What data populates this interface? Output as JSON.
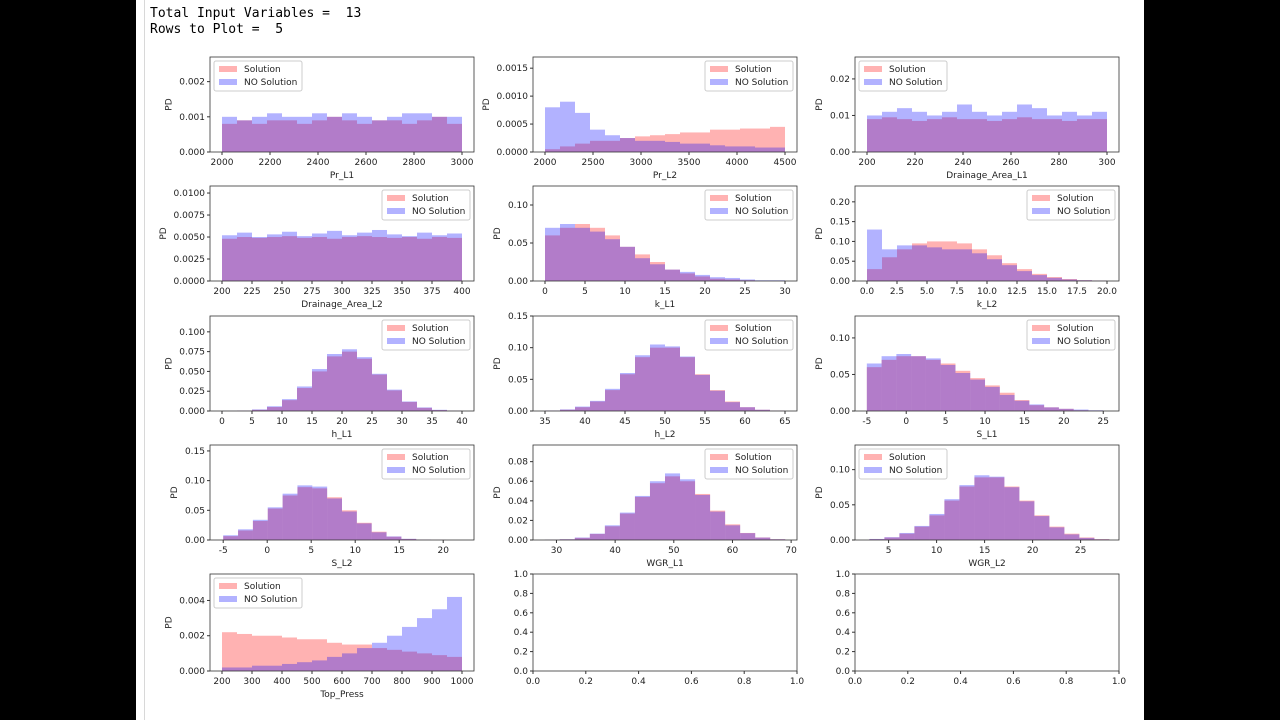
{
  "output": {
    "line1": "Total Input Variables =  13",
    "line2": "Rows to Plot =  5"
  },
  "colors": {
    "solution": "#ff0000",
    "no_solution": "#0000ff",
    "alpha": 0.3
  },
  "chart_data": [
    {
      "type": "bar",
      "xlabel": "Pr_L1",
      "ylabel": "PD",
      "legend": "upper-left",
      "range": [
        2000,
        3000
      ],
      "xlim": [
        1950,
        3050
      ],
      "ylim": [
        0,
        0.0027
      ],
      "xtick_labels": [
        "2000",
        "2200",
        "2400",
        "2600",
        "2800",
        "3000"
      ],
      "ytick_labels": [
        "0.000",
        "0.001",
        "0.002"
      ],
      "series": [
        {
          "name": "Solution",
          "values": [
            0.0008,
            0.0009,
            0.0008,
            0.0009,
            0.0009,
            0.0008,
            0.0009,
            0.001,
            0.0009,
            0.0008,
            0.0009,
            0.0009,
            0.0008,
            0.0009,
            0.001,
            0.0008
          ]
        },
        {
          "name": "NO Solution",
          "values": [
            0.001,
            0.0009,
            0.001,
            0.0011,
            0.001,
            0.001,
            0.0011,
            0.001,
            0.0011,
            0.001,
            0.0009,
            0.001,
            0.0011,
            0.0011,
            0.001,
            0.001
          ]
        }
      ]
    },
    {
      "type": "bar",
      "xlabel": "Pr_L2",
      "ylabel": "PD",
      "legend": "upper-right",
      "range": [
        2000,
        4500
      ],
      "xlim": [
        1875,
        4625
      ],
      "ylim": [
        0,
        0.0017
      ],
      "xtick_labels": [
        "2000",
        "2500",
        "3000",
        "3500",
        "4000",
        "4500"
      ],
      "ytick_labels": [
        "0.0000",
        "0.0005",
        "0.0010",
        "0.0015"
      ],
      "series": [
        {
          "name": "Solution",
          "values": [
            5e-05,
            0.0001,
            0.00015,
            0.0002,
            0.0002,
            0.00025,
            0.00028,
            0.0003,
            0.00032,
            0.00035,
            0.00035,
            0.0004,
            0.0004,
            0.00042,
            0.00042,
            0.00045
          ]
        },
        {
          "name": "NO Solution",
          "values": [
            0.0008,
            0.0009,
            0.0007,
            0.0004,
            0.0003,
            0.00025,
            0.0002,
            0.0002,
            0.00018,
            0.00015,
            0.00015,
            0.00012,
            0.0001,
            0.0001,
            8e-05,
            8e-05
          ]
        }
      ]
    },
    {
      "type": "bar",
      "xlabel": "Drainage_Area_L1",
      "ylabel": "PD",
      "legend": "upper-left",
      "range": [
        200,
        300
      ],
      "xlim": [
        195,
        305
      ],
      "ylim": [
        0,
        0.026
      ],
      "xtick_labels": [
        "200",
        "220",
        "240",
        "260",
        "280",
        "300"
      ],
      "ytick_labels": [
        "0.00",
        "0.01",
        "0.02"
      ],
      "series": [
        {
          "name": "Solution",
          "values": [
            0.009,
            0.0095,
            0.009,
            0.0085,
            0.009,
            0.0095,
            0.009,
            0.009,
            0.0085,
            0.009,
            0.0095,
            0.009,
            0.009,
            0.0085,
            0.009,
            0.009
          ]
        },
        {
          "name": "NO Solution",
          "values": [
            0.01,
            0.011,
            0.012,
            0.011,
            0.01,
            0.011,
            0.013,
            0.011,
            0.01,
            0.011,
            0.013,
            0.012,
            0.01,
            0.011,
            0.01,
            0.011
          ]
        }
      ]
    },
    {
      "type": "bar",
      "xlabel": "Drainage_Area_L2",
      "ylabel": "PD",
      "legend": "upper-right",
      "range": [
        200,
        400
      ],
      "xlim": [
        190,
        410
      ],
      "ylim": [
        0,
        0.0108
      ],
      "xtick_labels": [
        "200",
        "225",
        "250",
        "275",
        "300",
        "325",
        "350",
        "375",
        "400"
      ],
      "ytick_labels": [
        "0.0000",
        "0.0025",
        "0.0050",
        "0.0075",
        "0.0100"
      ],
      "series": [
        {
          "name": "Solution",
          "values": [
            0.0048,
            0.005,
            0.0049,
            0.005,
            0.0051,
            0.0049,
            0.005,
            0.0048,
            0.005,
            0.0051,
            0.005,
            0.0049,
            0.005,
            0.0048,
            0.005,
            0.0049
          ]
        },
        {
          "name": "NO Solution",
          "values": [
            0.0052,
            0.0055,
            0.005,
            0.0053,
            0.0056,
            0.0051,
            0.0054,
            0.0057,
            0.0052,
            0.0055,
            0.0058,
            0.0053,
            0.0051,
            0.0055,
            0.0052,
            0.0054
          ]
        }
      ]
    },
    {
      "type": "bar",
      "xlabel": "k_L1",
      "ylabel": "PD",
      "legend": "upper-right",
      "range": [
        0,
        30
      ],
      "xlim": [
        -1.5,
        31.5
      ],
      "ylim": [
        0,
        0.125
      ],
      "xtick_labels": [
        "0",
        "5",
        "10",
        "15",
        "20",
        "25",
        "30"
      ],
      "ytick_labels": [
        "0.00",
        "0.05",
        "0.10"
      ],
      "series": [
        {
          "name": "Solution",
          "values": [
            0.06,
            0.07,
            0.075,
            0.07,
            0.06,
            0.045,
            0.035,
            0.025,
            0.015,
            0.01,
            0.006,
            0.003,
            0.002,
            0.001,
            0,
            0
          ]
        },
        {
          "name": "NO Solution",
          "values": [
            0.07,
            0.075,
            0.07,
            0.065,
            0.055,
            0.045,
            0.03,
            0.022,
            0.015,
            0.012,
            0.008,
            0.005,
            0.004,
            0.002,
            0.001,
            0.001
          ]
        }
      ]
    },
    {
      "type": "bar",
      "xlabel": "k_L2",
      "ylabel": "PD",
      "legend": "upper-right",
      "range": [
        0,
        20
      ],
      "xlim": [
        -1,
        21
      ],
      "ylim": [
        0,
        0.24
      ],
      "xtick_labels": [
        "0.0",
        "2.5",
        "5.0",
        "7.5",
        "10.0",
        "12.5",
        "15.0",
        "17.5",
        "20.0"
      ],
      "ytick_labels": [
        "0.00",
        "0.05",
        "0.10",
        "0.15",
        "0.20"
      ],
      "series": [
        {
          "name": "Solution",
          "values": [
            0.03,
            0.06,
            0.08,
            0.095,
            0.1,
            0.1,
            0.095,
            0.08,
            0.065,
            0.045,
            0.03,
            0.018,
            0.01,
            0.005,
            0.002,
            0.001
          ]
        },
        {
          "name": "NO Solution",
          "values": [
            0.13,
            0.08,
            0.09,
            0.09,
            0.085,
            0.08,
            0.08,
            0.07,
            0.055,
            0.04,
            0.025,
            0.015,
            0.008,
            0.004,
            0.002,
            0.001
          ]
        }
      ]
    },
    {
      "type": "bar",
      "xlabel": "h_L1",
      "ylabel": "PD",
      "legend": "upper-right",
      "range": [
        0,
        40
      ],
      "xlim": [
        -2,
        42
      ],
      "ylim": [
        0,
        0.12
      ],
      "xtick_labels": [
        "0",
        "5",
        "10",
        "15",
        "20",
        "25",
        "30",
        "35",
        "40"
      ],
      "ytick_labels": [
        "0.000",
        "0.025",
        "0.050",
        "0.075",
        "0.100"
      ],
      "series": [
        {
          "name": "Solution",
          "values": [
            0.0001,
            0.0004,
            0.0015,
            0.005,
            0.0137,
            0.029,
            0.05,
            0.069,
            0.075,
            0.066,
            0.046,
            0.026,
            0.0115,
            0.004,
            0.0012,
            0.0003
          ]
        },
        {
          "name": "NO Solution",
          "values": [
            0.0002,
            0.0005,
            0.002,
            0.006,
            0.015,
            0.031,
            0.053,
            0.072,
            0.078,
            0.068,
            0.047,
            0.027,
            0.012,
            0.0045,
            0.0015,
            0.0004
          ]
        }
      ]
    },
    {
      "type": "bar",
      "xlabel": "h_L2",
      "ylabel": "PD",
      "legend": "upper-right",
      "range": [
        35,
        65
      ],
      "xlim": [
        33.5,
        66.5
      ],
      "ylim": [
        0,
        0.15
      ],
      "xtick_labels": [
        "35",
        "40",
        "45",
        "50",
        "55",
        "60",
        "65"
      ],
      "ytick_labels": [
        "0.00",
        "0.05",
        "0.10",
        "0.15"
      ],
      "series": [
        {
          "name": "Solution",
          "values": [
            0.0005,
            0.002,
            0.006,
            0.015,
            0.033,
            0.058,
            0.085,
            0.1,
            0.1,
            0.085,
            0.058,
            0.033,
            0.015,
            0.006,
            0.002,
            0.0005
          ]
        },
        {
          "name": "NO Solution",
          "values": [
            0.0007,
            0.0025,
            0.007,
            0.016,
            0.035,
            0.06,
            0.088,
            0.105,
            0.102,
            0.086,
            0.057,
            0.032,
            0.014,
            0.006,
            0.002,
            0.0005
          ]
        }
      ]
    },
    {
      "type": "bar",
      "xlabel": "S_L1",
      "ylabel": "PD",
      "legend": "upper-right",
      "range": [
        -5,
        25
      ],
      "xlim": [
        -6.5,
        27
      ],
      "ylim": [
        0,
        0.13
      ],
      "xtick_labels": [
        "-5",
        "0",
        "5",
        "10",
        "15",
        "20",
        "25"
      ],
      "ytick_labels": [
        "0.00",
        "0.05",
        "0.10"
      ],
      "series": [
        {
          "name": "Solution",
          "values": [
            0.06,
            0.07,
            0.075,
            0.075,
            0.07,
            0.065,
            0.055,
            0.045,
            0.035,
            0.025,
            0.015,
            0.008,
            0.005,
            0.003,
            0.001,
            0.0005
          ]
        },
        {
          "name": "NO Solution",
          "values": [
            0.065,
            0.075,
            0.078,
            0.075,
            0.072,
            0.063,
            0.052,
            0.043,
            0.033,
            0.022,
            0.014,
            0.009,
            0.005,
            0.003,
            0.002,
            0.001
          ]
        }
      ]
    },
    {
      "type": "bar",
      "xlabel": "S_L2",
      "ylabel": "PD",
      "legend": "upper-right",
      "range": [
        -5,
        22
      ],
      "xlim": [
        -6.5,
        23.5
      ],
      "ylim": [
        0,
        0.16
      ],
      "xtick_labels": [
        "-5",
        "0",
        "5",
        "10",
        "15",
        "20"
      ],
      "ytick_labels": [
        "0.00",
        "0.05",
        "0.10",
        "0.15"
      ],
      "series": [
        {
          "name": "Solution",
          "values": [
            0.0065,
            0.016,
            0.032,
            0.053,
            0.075,
            0.089,
            0.087,
            0.072,
            0.05,
            0.029,
            0.014,
            0.0056,
            0.0018,
            0.0005,
            0.0001,
            0
          ]
        },
        {
          "name": "NO Solution",
          "values": [
            0.008,
            0.018,
            0.034,
            0.055,
            0.078,
            0.092,
            0.09,
            0.07,
            0.048,
            0.028,
            0.013,
            0.006,
            0.002,
            0.0006,
            0.0002,
            0
          ]
        }
      ]
    },
    {
      "type": "bar",
      "xlabel": "WGR_L1",
      "ylabel": "PD",
      "legend": "upper-right",
      "range": [
        28,
        69
      ],
      "xlim": [
        26,
        71
      ],
      "ylim": [
        0,
        0.097
      ],
      "xtick_labels": [
        "30",
        "40",
        "50",
        "60",
        "70"
      ],
      "ytick_labels": [
        "0.00",
        "0.02",
        "0.04",
        "0.06",
        "0.08"
      ],
      "series": [
        {
          "name": "Solution",
          "values": [
            0.0002,
            0.0007,
            0.0022,
            0.0062,
            0.014,
            0.027,
            0.044,
            0.058,
            0.065,
            0.06,
            0.047,
            0.03,
            0.016,
            0.0072,
            0.0026,
            0.0008
          ]
        },
        {
          "name": "NO Solution",
          "values": [
            0.0003,
            0.0008,
            0.0025,
            0.0065,
            0.015,
            0.028,
            0.045,
            0.06,
            0.068,
            0.062,
            0.046,
            0.029,
            0.015,
            0.007,
            0.0025,
            0.0008
          ]
        }
      ]
    },
    {
      "type": "bar",
      "xlabel": "WGR_L2",
      "ylabel": "PD",
      "legend": "upper-left",
      "range": [
        3,
        28
      ],
      "xlim": [
        1.5,
        29
      ],
      "ylim": [
        0,
        0.135
      ],
      "xtick_labels": [
        "5",
        "10",
        "15",
        "20",
        "25"
      ],
      "ytick_labels": [
        "0.00",
        "0.05",
        "0.10"
      ],
      "series": [
        {
          "name": "Solution",
          "values": [
            0.0012,
            0.0036,
            0.009,
            0.019,
            0.035,
            0.056,
            0.076,
            0.089,
            0.089,
            0.076,
            0.056,
            0.035,
            0.019,
            0.009,
            0.0036,
            0.0012
          ]
        },
        {
          "name": "NO Solution",
          "values": [
            0.0015,
            0.004,
            0.01,
            0.02,
            0.037,
            0.058,
            0.078,
            0.092,
            0.09,
            0.075,
            0.055,
            0.034,
            0.018,
            0.008,
            0.003,
            0.001
          ]
        }
      ]
    },
    {
      "type": "bar",
      "xlabel": "Top_Press",
      "ylabel": "PD",
      "legend": "upper-left",
      "range": [
        200,
        1000
      ],
      "xlim": [
        160,
        1040
      ],
      "ylim": [
        0,
        0.0055
      ],
      "xtick_labels": [
        "200",
        "300",
        "400",
        "500",
        "600",
        "700",
        "800",
        "900",
        "1000"
      ],
      "ytick_labels": [
        "0.000",
        "0.002",
        "0.004"
      ],
      "series": [
        {
          "name": "Solution",
          "values": [
            0.0022,
            0.0021,
            0.002,
            0.002,
            0.0019,
            0.0018,
            0.0018,
            0.0016,
            0.0015,
            0.0015,
            0.0013,
            0.0012,
            0.0011,
            0.001,
            0.0009,
            0.0008
          ]
        },
        {
          "name": "NO Solution",
          "values": [
            0.0002,
            0.0002,
            0.0003,
            0.0003,
            0.0004,
            0.0005,
            0.0006,
            0.0008,
            0.001,
            0.0013,
            0.0016,
            0.002,
            0.0025,
            0.003,
            0.0035,
            0.0042
          ]
        }
      ]
    },
    {
      "type": "bar",
      "xlabel": "",
      "ylabel": "",
      "legend": "none",
      "xlim": [
        0,
        1
      ],
      "ylim": [
        0,
        1
      ],
      "xtick_labels": [
        "0.0",
        "0.2",
        "0.4",
        "0.6",
        "0.8",
        "1.0"
      ],
      "ytick_labels": [
        "0.0",
        "0.2",
        "0.4",
        "0.6",
        "0.8",
        "1.0"
      ],
      "series": []
    },
    {
      "type": "bar",
      "xlabel": "",
      "ylabel": "",
      "legend": "none",
      "xlim": [
        0,
        1
      ],
      "ylim": [
        0,
        1
      ],
      "xtick_labels": [
        "0.0",
        "0.2",
        "0.4",
        "0.6",
        "0.8",
        "1.0"
      ],
      "ytick_labels": [
        "0.0",
        "0.2",
        "0.4",
        "0.6",
        "0.8",
        "1.0"
      ],
      "series": []
    }
  ]
}
